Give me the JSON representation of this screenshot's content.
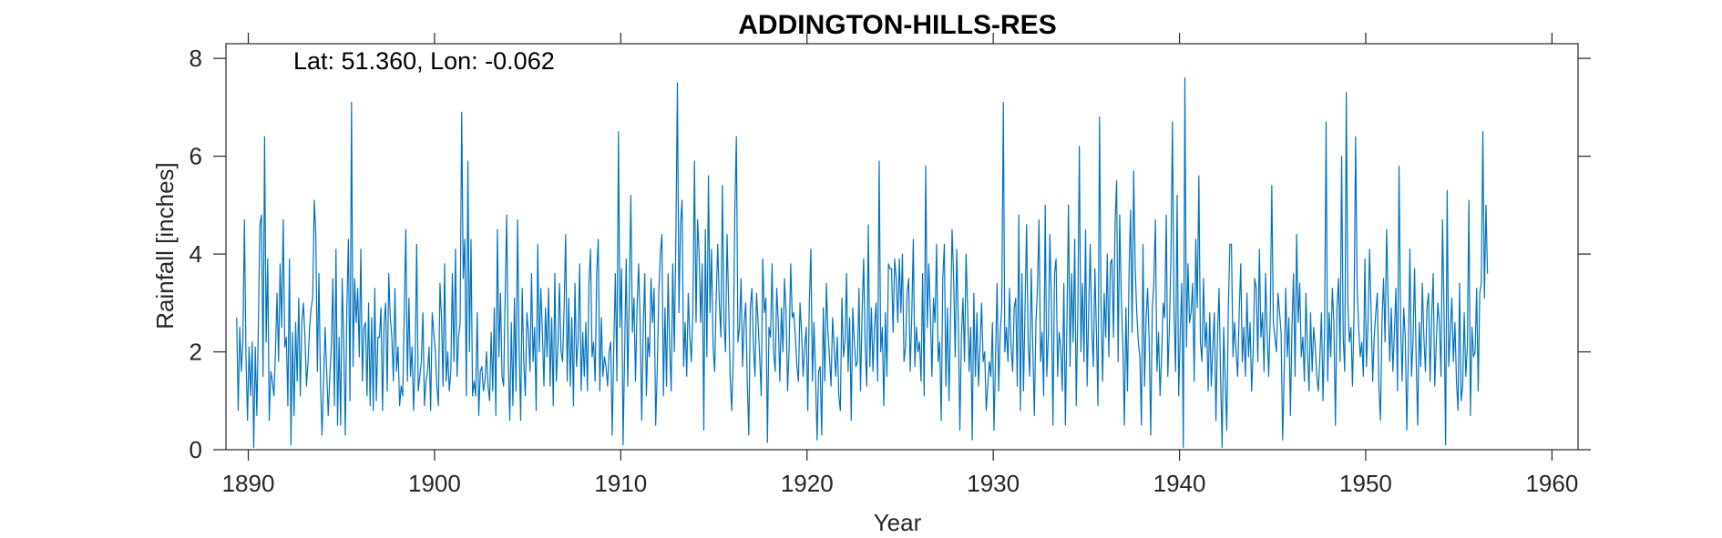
{
  "chart_data": {
    "type": "line",
    "title": "ADDINGTON-HILLS-RES",
    "xlabel": "Year",
    "ylabel": "Rainfall [inches]",
    "annotation": "Lat: 51.360, Lon: -0.062",
    "xlim": [
      1888.8,
      1961.4
    ],
    "ylim": [
      0,
      8.3
    ],
    "xticks": [
      1890,
      1900,
      1910,
      1920,
      1930,
      1940,
      1950,
      1960
    ],
    "xtick_labels": [
      "1890",
      "1900",
      "1910",
      "1920",
      "1930",
      "1940",
      "1950",
      "1960"
    ],
    "yticks": [
      0,
      2,
      4,
      6,
      8
    ],
    "ytick_labels": [
      "0",
      "2",
      "4",
      "6",
      "8"
    ],
    "grid": false,
    "legend": "none",
    "series": [
      {
        "color": "#0072BD",
        "x_start": 1889.375,
        "x_step": 0.08333,
        "values": [
          2.7,
          0.8,
          2.5,
          1.6,
          2.2,
          4.7,
          1.9,
          0.6,
          2.1,
          1.1,
          2.2,
          0.05,
          2.1,
          0.7,
          2.6,
          4.6,
          4.8,
          1.5,
          6.4,
          2.2,
          3.9,
          0.6,
          1.6,
          1.4,
          1.1,
          2.0,
          3.2,
          1.8,
          3.8,
          2.5,
          4.7,
          2.1,
          2.3,
          0.9,
          3.9,
          0.1,
          2.4,
          0.7,
          2.6,
          1.4,
          3.1,
          1.1,
          2.6,
          3.0,
          2.3,
          1.3,
          1.8,
          2.5,
          2.9,
          3.1,
          5.1,
          4.4,
          1.6,
          3.6,
          1.4,
          0.3,
          1.4,
          2.5,
          1.6,
          0.7,
          1.5,
          2.1,
          3.5,
          0.9,
          4.1,
          0.5,
          2.3,
          0.5,
          3.5,
          2.2,
          0.3,
          2.9,
          4.3,
          1.0,
          7.1,
          1.7,
          3.5,
          2.6,
          3.3,
          1.9,
          4.1,
          1.4,
          2.5,
          2.6,
          1.1,
          3.0,
          0.9,
          2.7,
          0.8,
          3.3,
          1.0,
          2.3,
          2.3,
          2.9,
          0.8,
          2.6,
          3.0,
          1.2,
          3.6,
          2.7,
          2.3,
          1.4,
          3.3,
          1.6,
          2.1,
          0.9,
          1.3,
          1.1,
          2.8,
          4.5,
          1.4,
          3.1,
          1.5,
          2.1,
          0.8,
          1.8,
          4.2,
          1.2,
          1.5,
          1.8,
          2.8,
          0.9,
          1.4,
          1.6,
          2.1,
          0.8,
          2.8,
          2.4,
          2.0,
          1.3,
          0.9,
          3.4,
          2.7,
          1.3,
          3.8,
          1.4,
          2.0,
          1.2,
          1.6,
          3.6,
          1.8,
          4.1,
          1.5,
          2.3,
          2.6,
          6.9,
          3.5,
          4.3,
          1.1,
          5.9,
          2.0,
          4.3,
          1.1,
          1.4,
          1.1,
          2.8,
          0.7,
          1.6,
          1.7,
          1.2,
          1.4,
          2.0,
          1.3,
          1.0,
          2.4,
          1.2,
          2.9,
          0.7,
          4.5,
          1.9,
          3.2,
          1.5,
          1.3,
          3.1,
          4.8,
          1.8,
          0.6,
          2.6,
          0.9,
          3.1,
          1.2,
          4.7,
          2.1,
          0.6,
          3.3,
          1.8,
          1.1,
          2.8,
          2.4,
          1.6,
          3.6,
          1.8,
          2.5,
          0.8,
          4.2,
          2.0,
          3.3,
          2.4,
          1.3,
          2.9,
          1.9,
          3.3,
          1.3,
          2.7,
          0.9,
          3.6,
          1.4,
          2.1,
          3.4,
          2.0,
          1.8,
          2.9,
          4.4,
          1.4,
          3.1,
          1.3,
          2.7,
          0.9,
          3.4,
          1.7,
          2.2,
          3.8,
          1.2,
          2.4,
          1.5,
          2.6,
          1.2,
          3.4,
          4.1,
          1.9,
          2.2,
          1.4,
          3.6,
          4.3,
          1.2,
          2.7,
          1.5,
          1.9,
          1.7,
          1.3,
          2.0,
          2.2,
          0.3,
          2.1,
          3.6,
          1.4,
          6.5,
          2.5,
          3.7,
          0.1,
          2.0,
          3.9,
          1.3,
          3.2,
          5.2,
          2.4,
          3.1,
          1.4,
          2.9,
          3.8,
          2.6,
          0.6,
          2.5,
          3.6,
          1.1,
          2.3,
          1.9,
          3.5,
          2.6,
          3.3,
          0.5,
          1.6,
          3.2,
          4.0,
          4.4,
          1.1,
          2.9,
          1.3,
          3.6,
          2.1,
          1.2,
          3.8,
          2.0,
          4.3,
          7.5,
          2.8,
          4.6,
          5.1,
          1.7,
          2.6,
          1.5,
          3.2,
          2.3,
          1.8,
          2.9,
          5.9,
          2.6,
          4.7,
          4.0,
          2.6,
          3.8,
          0.4,
          4.5,
          1.9,
          5.6,
          2.8,
          4.1,
          2.1,
          1.6,
          3.1,
          4.2,
          3.0,
          2.3,
          5.4,
          2.6,
          2.0,
          4.4,
          3.0,
          1.5,
          0.8,
          1.9,
          4.9,
          6.4,
          2.2,
          2.5,
          3.5,
          1.7,
          2.6,
          3.0,
          1.4,
          0.3,
          2.9,
          3.3,
          2.1,
          1.5,
          3.2,
          2.6,
          1.9,
          1.1,
          3.9,
          2.8,
          3.1,
          0.15,
          2.5,
          2.3,
          3.8,
          2.0,
          1.6,
          3.3,
          2.6,
          1.4,
          2.9,
          2.0,
          3.5,
          2.8,
          1.2,
          2.1,
          3.8,
          2.7,
          2.8,
          2.3,
          1.7,
          1.4,
          3.0,
          2.4,
          1.5,
          2.1,
          2.5,
          0.8,
          3.0,
          4.1,
          1.4,
          2.6,
          1.5,
          0.2,
          1.6,
          1.7,
          0.3,
          2.9,
          1.4,
          3.4,
          2.4,
          1.9,
          1.3,
          2.7,
          2.1,
          1.5,
          2.3,
          1.1,
          0.8,
          3.1,
          1.9,
          2.2,
          3.6,
          1.6,
          2.7,
          0.6,
          2.9,
          2.2,
          1.7,
          1.8,
          3.3,
          1.2,
          2.8,
          3.9,
          2.1,
          1.3,
          4.6,
          1.7,
          2.9,
          1.6,
          2.5,
          3.0,
          1.4,
          5.9,
          2.0,
          2.5,
          0.9,
          2.8,
          1.5,
          3.8,
          3.7,
          3.7,
          2.4,
          3.9,
          3.5,
          2.6,
          3.9,
          2.8,
          4.0,
          1.8,
          2.1,
          3.2,
          3.5,
          1.6,
          2.7,
          4.3,
          1.7,
          2.5,
          2.0,
          2.2,
          1.4,
          3.6,
          1.1,
          5.8,
          2.5,
          3.8,
          2.8,
          1.5,
          3.1,
          2.6,
          4.2,
          1.8,
          2.2,
          0.6,
          3.5,
          4.2,
          1.3,
          2.9,
          1.0,
          2.7,
          4.5,
          3.5,
          1.9,
          4.1,
          2.6,
          0.4,
          2.3,
          3.1,
          1.8,
          4.0,
          2.9,
          1.6,
          2.5,
          0.2,
          3.2,
          1.5,
          2.8,
          1.3,
          2.1,
          3.0,
          1.8,
          2.0,
          0.8,
          1.3,
          1.8,
          1.5,
          2.6,
          0.4,
          1.9,
          3.4,
          1.2,
          2.4,
          2.9,
          7.1,
          2.0,
          2.5,
          1.8,
          3.3,
          2.1,
          1.6,
          2.9,
          3.1,
          1.3,
          4.8,
          0.8,
          3.6,
          1.2,
          2.9,
          4.6,
          2.2,
          1.5,
          3.7,
          2.1,
          0.7,
          2.6,
          3.3,
          4.7,
          1.8,
          2.4,
          1.1,
          5.0,
          1.5,
          2.3,
          4.4,
          3.0,
          0.5,
          3.6,
          3.9,
          1.5,
          2.4,
          2.1,
          1.2,
          3.4,
          0.5,
          2.6,
          5.0,
          1.7,
          3.6,
          2.2,
          4.3,
          0.9,
          2.8,
          6.2,
          2.0,
          3.4,
          1.8,
          4.5,
          1.3,
          2.8,
          4.2,
          2.5,
          1.7,
          3.7,
          2.4,
          0.9,
          6.8,
          2.9,
          1.4,
          3.2,
          2.3,
          4.0,
          1.9,
          3.8,
          3.9,
          2.3,
          4.6,
          5.5,
          1.8,
          4.8,
          3.1,
          2.2,
          0.5,
          2.9,
          1.2,
          3.6,
          4.9,
          2.4,
          5.7,
          3.7,
          2.8,
          2.2,
          1.9,
          0.5,
          4.2,
          1.3,
          2.7,
          3.3,
          2.2,
          0.3,
          2.9,
          3.4,
          4.7,
          1.6,
          2.4,
          1.1,
          1.9,
          3.0,
          2.7,
          4.8,
          1.5,
          2.5,
          3.9,
          6.7,
          2.8,
          1.6,
          5.2,
          1.1,
          2.4,
          3.4,
          0.05,
          7.6,
          2.1,
          3.8,
          2.6,
          2.8,
          3.4,
          1.4,
          4.3,
          2.9,
          5.6,
          2.2,
          1.8,
          3.5,
          2.1,
          2.6,
          1.2,
          2.8,
          1.3,
          2.1,
          2.8,
          0.6,
          2.3,
          3.3,
          1.5,
          0.05,
          2.5,
          1.4,
          0.4,
          2.9,
          4.2,
          4.2,
          1.9,
          2.6,
          2.0,
          1.5,
          2.8,
          3.8,
          1.8,
          2.5,
          1.5,
          3.2,
          1.9,
          2.6,
          1.2,
          2.0,
          3.5,
          3.3,
          1.8,
          4.1,
          2.3,
          2.8,
          1.6,
          3.6,
          2.4,
          1.5,
          2.7,
          5.4,
          2.6,
          2.3,
          2.0,
          3.2,
          2.8,
          2.4,
          0.2,
          1.6,
          3.3,
          1.9,
          2.7,
          0.7,
          2.5,
          3.6,
          1.5,
          4.4,
          2.6,
          3.4,
          1.9,
          2.3,
          1.4,
          3.2,
          2.0,
          1.2,
          2.8,
          1.6,
          2.5,
          2.1,
          1.5,
          1.2,
          1.9,
          2.8,
          1.0,
          2.4,
          6.7,
          1.4,
          2.8,
          1.9,
          3.3,
          2.6,
          0.5,
          2.9,
          3.5,
          1.8,
          6.0,
          2.3,
          1.6,
          7.3,
          3.0,
          2.2,
          2.5,
          1.3,
          2.8,
          6.4,
          3.3,
          2.5,
          1.9,
          2.2,
          1.5,
          3.9,
          1.7,
          2.6,
          4.1,
          2.8,
          1.4,
          2.3,
          2.8,
          3.2,
          1.3,
          0.6,
          2.6,
          3.5,
          2.2,
          4.5,
          3.0,
          1.8,
          2.9,
          1.6,
          2.4,
          3.3,
          1.2,
          5.8,
          2.6,
          1.4,
          2.9,
          2.3,
          0.4,
          2.0,
          4.1,
          1.5,
          2.2,
          3.7,
          1.9,
          0.5,
          2.6,
          1.7,
          3.4,
          2.3,
          1.6,
          2.9,
          3.2,
          1.4,
          2.7,
          3.6,
          1.3,
          2.2,
          3.0,
          2.6,
          1.5,
          4.7,
          2.8,
          0.1,
          5.3,
          1.7,
          2.4,
          3.1,
          1.8,
          2.6,
          1.4,
          0.8,
          3.4,
          1.0,
          1.3,
          2.8,
          1.5,
          2.1,
          5.1,
          0.7,
          2.5,
          1.9,
          2.0,
          3.3,
          1.2,
          3.2,
          3.4,
          6.5,
          3.1,
          5.0,
          3.6
        ]
      }
    ]
  }
}
